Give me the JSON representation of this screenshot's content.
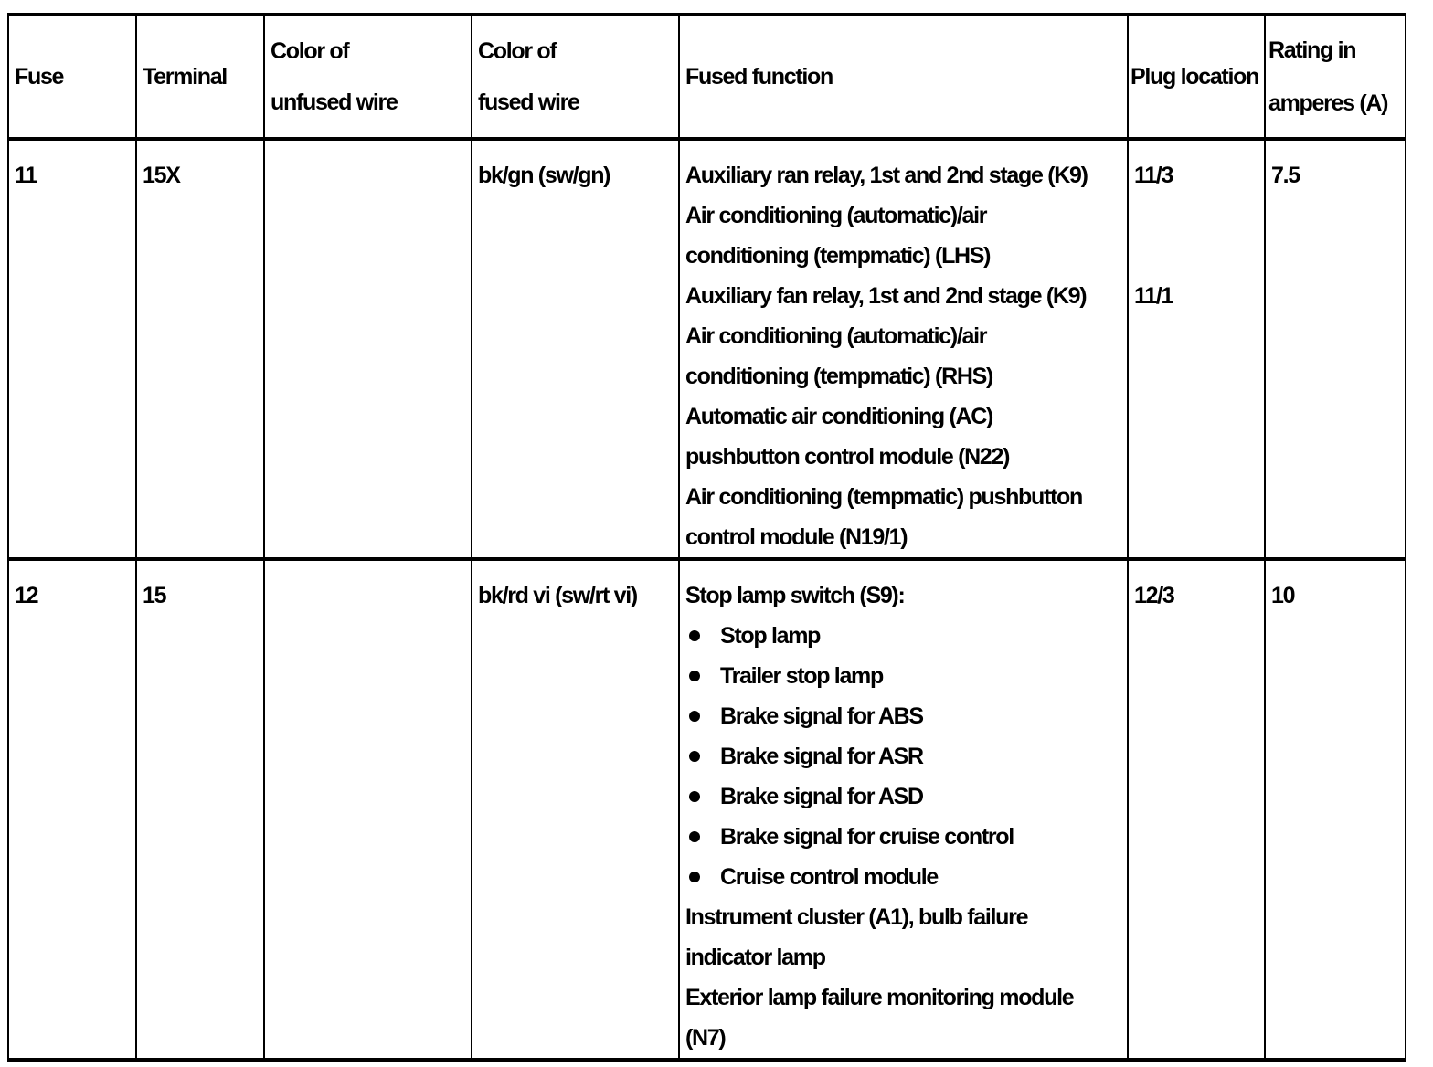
{
  "headers": [
    "Fuse",
    "Terminal",
    "Color of unfused wire",
    "Color of fused wire",
    "Fused function",
    "Plug location",
    "Rating in amperes (A)"
  ],
  "header_lines": [
    [
      "Fuse"
    ],
    [
      "Terminal"
    ],
    [
      "Color of",
      "unfused wire"
    ],
    [
      "Color of",
      "fused wire"
    ],
    [
      "Fused function"
    ],
    [
      "Plug location"
    ],
    [
      "Rating in",
      "amperes (A)"
    ]
  ],
  "rows": [
    {
      "fuse": "11",
      "terminal": "15X",
      "unfused_wire": "",
      "fused_wire": "bk/gn (sw/gn)",
      "functions": [
        "Auxiliary ran relay, 1st and 2nd stage (K9)",
        "Air conditioning (automatic)/air",
        "conditioning (tempmatic) (LHS)",
        "Auxiliary fan relay, 1st and 2nd stage (K9)",
        "Air conditioning (automatic)/air",
        "conditioning (tempmatic) (RHS)",
        "Automatic air conditioning (AC)",
        "pushbutton control module (N22)",
        "Air conditioning (tempmatic) pushbutton",
        "control module (N19/1)"
      ],
      "plug_locations": [
        "11/3",
        "",
        "",
        "11/1"
      ],
      "rating": "7.5"
    },
    {
      "fuse": "12",
      "terminal": "15",
      "unfused_wire": "",
      "fused_wire": "bk/rd vi (sw/rt vi)",
      "functions_intro": "Stop lamp switch (S9):",
      "bullets": [
        "Stop lamp",
        "Trailer stop lamp",
        "Brake signal for ABS",
        "Brake signal for ASR",
        "Brake signal for ASD",
        "Brake signal for cruise control",
        "Cruise control module"
      ],
      "functions_after": [
        "Instrument cluster (A1), bulb failure",
        "indicator lamp",
        "Exterior lamp failure monitoring module",
        "(N7)"
      ],
      "plug_locations": [
        "12/3"
      ],
      "rating": "10"
    }
  ]
}
